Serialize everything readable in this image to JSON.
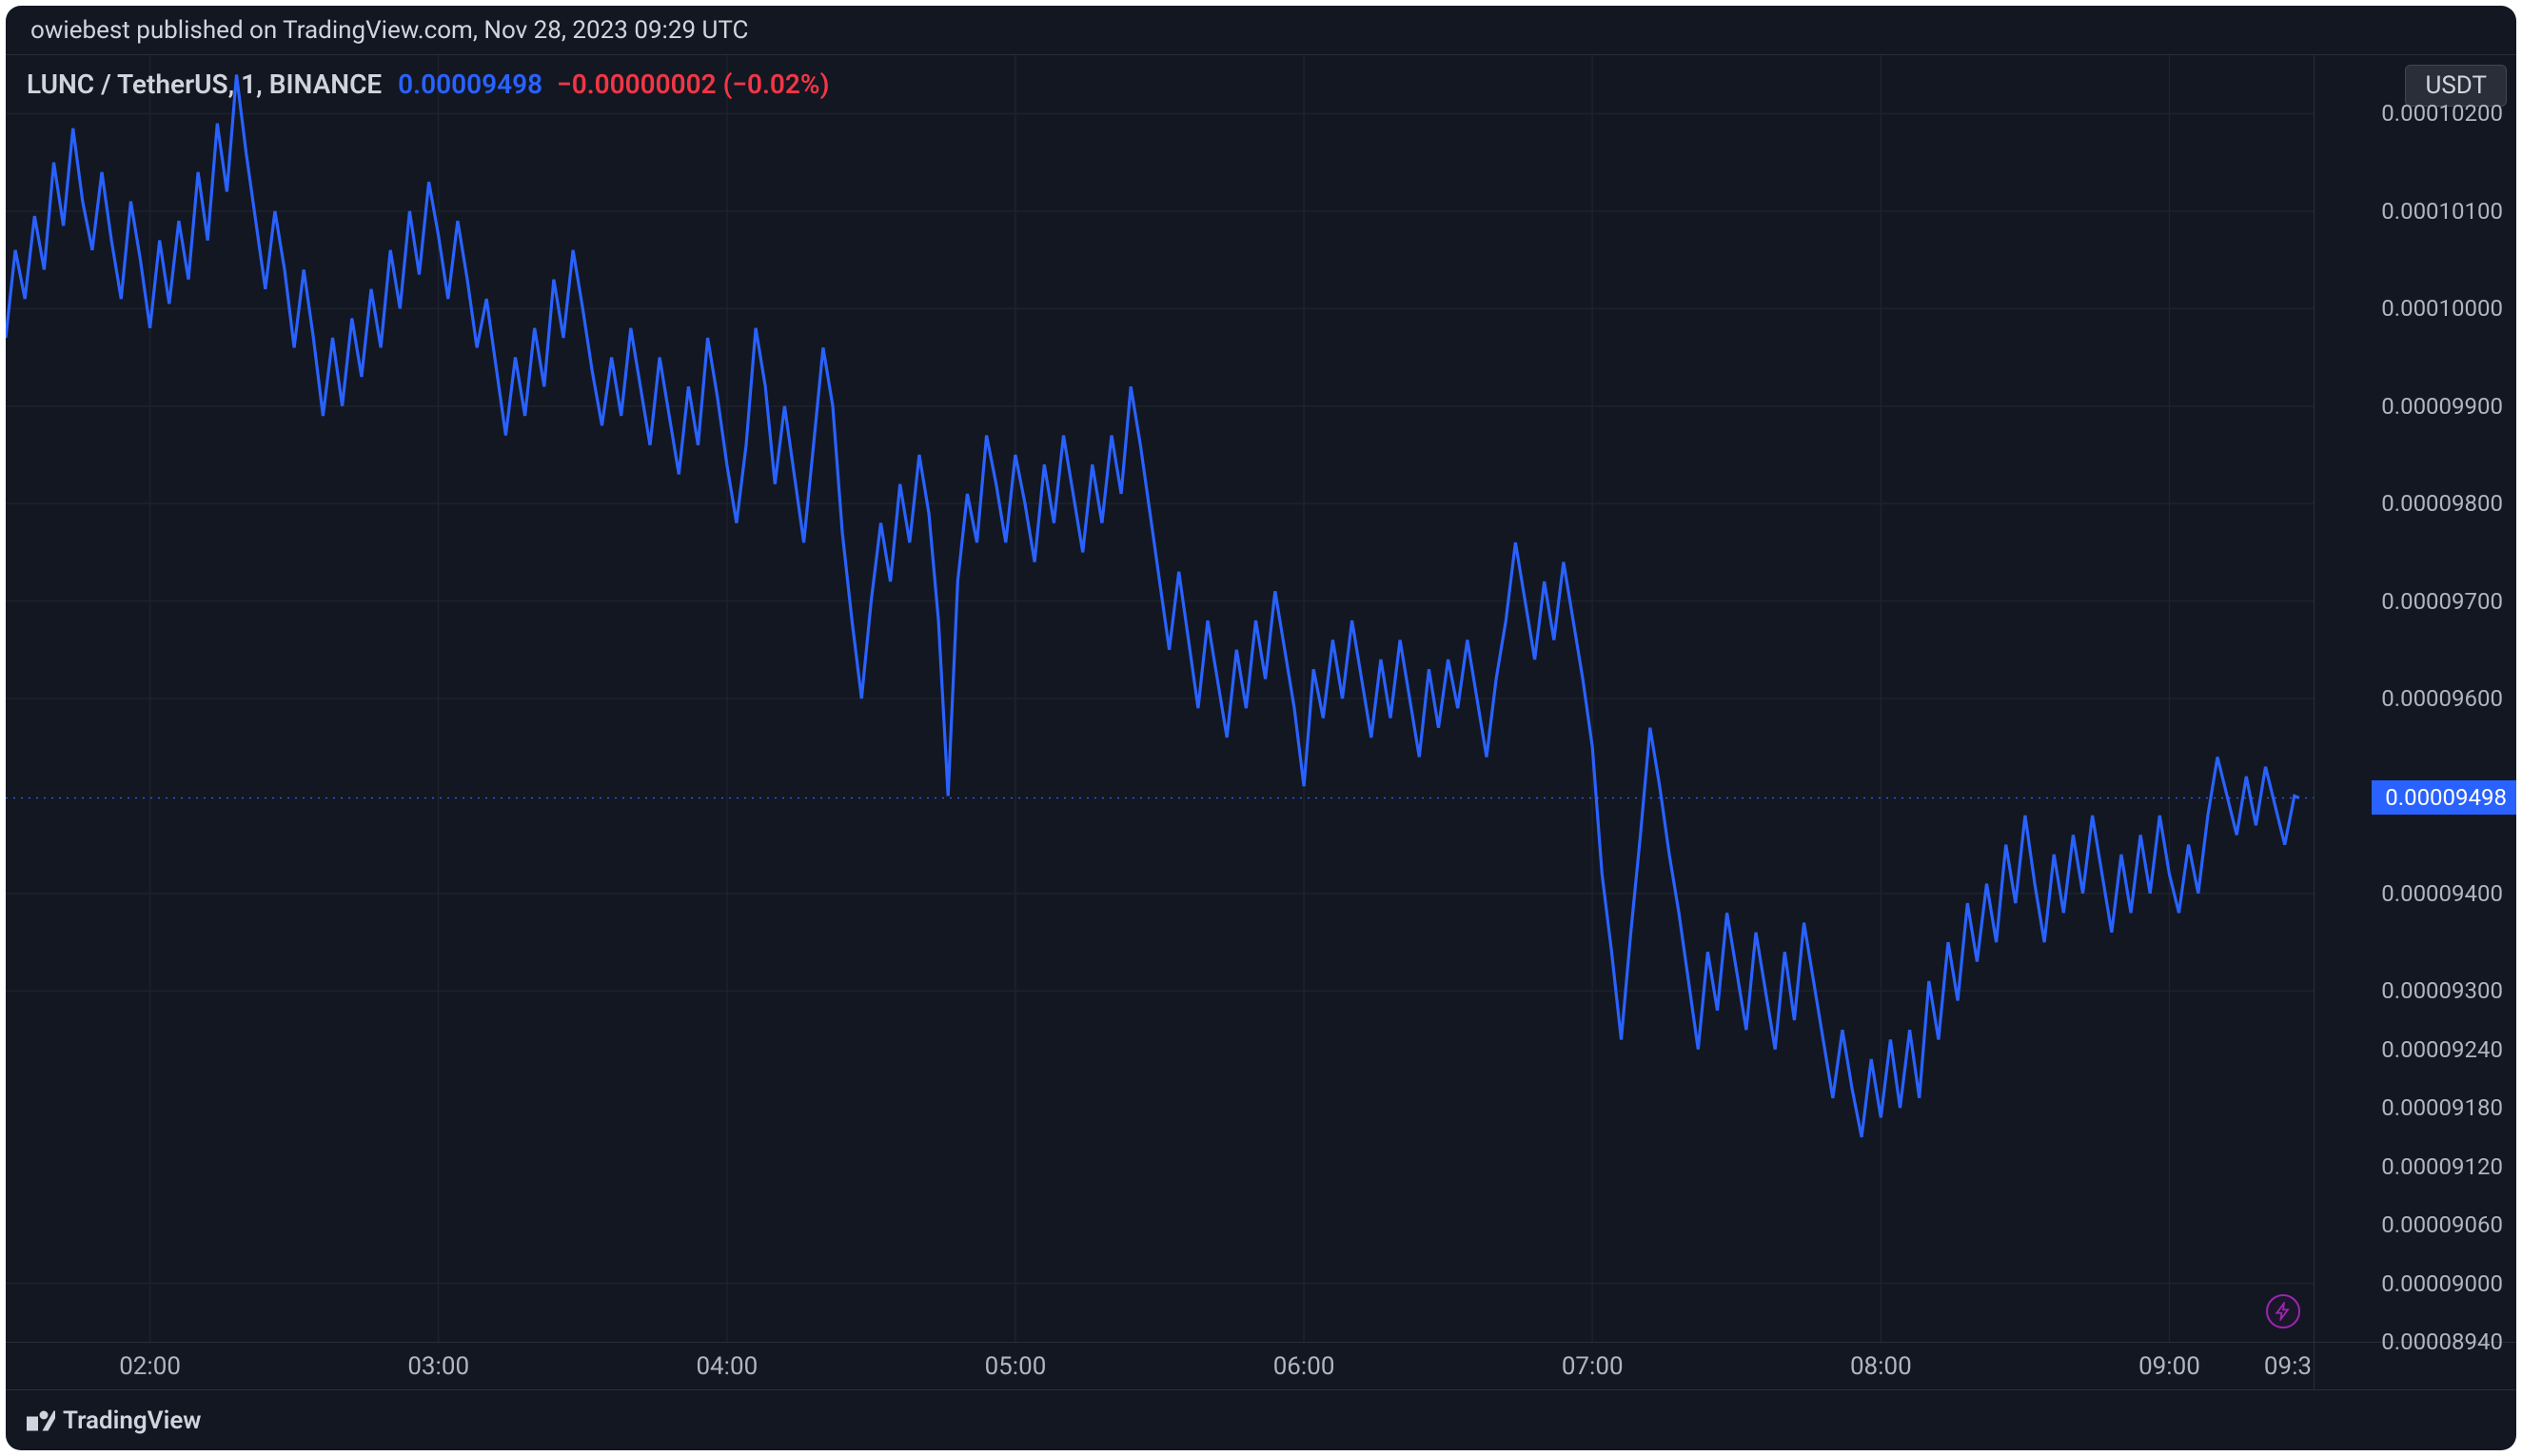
{
  "publish_line": "owiebest published on TradingView.com, Nov 28, 2023 09:29 UTC",
  "legend": {
    "symbol": "LUNC / TetherUS, 1, BINANCE",
    "value": "0.00009498",
    "change": "−0.00000002 (−0.02%)"
  },
  "unit_badge": "USDT",
  "footer_brand": "TradingView",
  "chart": {
    "type": "line",
    "background_color": "#131722",
    "grid_color": "#1e222d",
    "line_color": "#2962ff",
    "text_color": "#b2b5be",
    "change_color": "#f23645",
    "badge_bg": "#2a2e39",
    "font_family": "Trebuchet MS",
    "x_domain_minutes": [
      90,
      570
    ],
    "y_domain": [
      8.94e-05,
      0.0001026
    ],
    "x_ticks": [
      {
        "minute": 120,
        "label": "02:00"
      },
      {
        "minute": 180,
        "label": "03:00"
      },
      {
        "minute": 240,
        "label": "04:00"
      },
      {
        "minute": 300,
        "label": "05:00"
      },
      {
        "minute": 360,
        "label": "06:00"
      },
      {
        "minute": 420,
        "label": "07:00"
      },
      {
        "minute": 480,
        "label": "08:00"
      },
      {
        "minute": 540,
        "label": "09:00"
      },
      {
        "minute": 570,
        "label": "09:3"
      }
    ],
    "y_ticks": [
      {
        "v": 0.000102,
        "label": "0.00010200"
      },
      {
        "v": 0.000101,
        "label": "0.00010100"
      },
      {
        "v": 0.0001,
        "label": "0.00010000"
      },
      {
        "v": 9.9e-05,
        "label": "0.00009900"
      },
      {
        "v": 9.8e-05,
        "label": "0.00009800"
      },
      {
        "v": 9.7e-05,
        "label": "0.00009700"
      },
      {
        "v": 9.6e-05,
        "label": "0.00009600"
      },
      {
        "v": 9.498e-05,
        "label": "0.00009498",
        "is_last": true
      },
      {
        "v": 9.4e-05,
        "label": "0.00009400"
      },
      {
        "v": 9.3e-05,
        "label": "0.00009300"
      },
      {
        "v": 9.24e-05,
        "label": "0.00009240"
      },
      {
        "v": 9.18e-05,
        "label": "0.00009180"
      },
      {
        "v": 9.12e-05,
        "label": "0.00009120"
      },
      {
        "v": 9.06e-05,
        "label": "0.00009060"
      },
      {
        "v": 9e-05,
        "label": "0.00009000"
      },
      {
        "v": 8.94e-05,
        "label": "0.00008940"
      }
    ],
    "y_grid": [
      0.000102,
      0.000101,
      0.0001,
      9.9e-05,
      9.8e-05,
      9.7e-05,
      9.6e-05,
      9.4e-05,
      9.3e-05,
      9e-05
    ],
    "last_price": 9.498e-05,
    "series": [
      [
        90,
        9.97e-05
      ],
      [
        92,
        0.0001006
      ],
      [
        94,
        0.0001001
      ],
      [
        96,
        0.00010095
      ],
      [
        98,
        0.0001004
      ],
      [
        100,
        0.0001015
      ],
      [
        102,
        0.00010085
      ],
      [
        104,
        0.00010185
      ],
      [
        106,
        0.0001011
      ],
      [
        108,
        0.0001006
      ],
      [
        110,
        0.0001014
      ],
      [
        112,
        0.0001007
      ],
      [
        114,
        0.0001001
      ],
      [
        116,
        0.0001011
      ],
      [
        118,
        0.0001005
      ],
      [
        120,
        9.98e-05
      ],
      [
        122,
        0.0001007
      ],
      [
        124,
        0.00010005
      ],
      [
        126,
        0.0001009
      ],
      [
        128,
        0.0001003
      ],
      [
        130,
        0.0001014
      ],
      [
        132,
        0.0001007
      ],
      [
        134,
        0.0001019
      ],
      [
        136,
        0.0001012
      ],
      [
        138,
        0.0001024
      ],
      [
        140,
        0.0001016
      ],
      [
        142,
        0.0001009
      ],
      [
        144,
        0.0001002
      ],
      [
        146,
        0.000101
      ],
      [
        148,
        0.0001004
      ],
      [
        150,
        9.96e-05
      ],
      [
        152,
        0.0001004
      ],
      [
        154,
        9.97e-05
      ],
      [
        156,
        9.89e-05
      ],
      [
        158,
        9.97e-05
      ],
      [
        160,
        9.9e-05
      ],
      [
        162,
        9.99e-05
      ],
      [
        164,
        9.93e-05
      ],
      [
        166,
        0.0001002
      ],
      [
        168,
        9.96e-05
      ],
      [
        170,
        0.0001006
      ],
      [
        172,
        0.0001
      ],
      [
        174,
        0.000101
      ],
      [
        176,
        0.00010035
      ],
      [
        178,
        0.0001013
      ],
      [
        180,
        0.00010075
      ],
      [
        182,
        0.0001001
      ],
      [
        184,
        0.0001009
      ],
      [
        186,
        0.0001003
      ],
      [
        188,
        9.96e-05
      ],
      [
        190,
        0.0001001
      ],
      [
        192,
        9.94e-05
      ],
      [
        194,
        9.87e-05
      ],
      [
        196,
        9.95e-05
      ],
      [
        198,
        9.89e-05
      ],
      [
        200,
        9.98e-05
      ],
      [
        202,
        9.92e-05
      ],
      [
        204,
        0.0001003
      ],
      [
        206,
        9.97e-05
      ],
      [
        208,
        0.0001006
      ],
      [
        210,
        0.0001
      ],
      [
        212,
        9.935e-05
      ],
      [
        214,
        9.88e-05
      ],
      [
        216,
        9.95e-05
      ],
      [
        218,
        9.89e-05
      ],
      [
        220,
        9.98e-05
      ],
      [
        222,
        9.92e-05
      ],
      [
        224,
        9.86e-05
      ],
      [
        226,
        9.95e-05
      ],
      [
        228,
        9.89e-05
      ],
      [
        230,
        9.83e-05
      ],
      [
        232,
        9.92e-05
      ],
      [
        234,
        9.86e-05
      ],
      [
        236,
        9.97e-05
      ],
      [
        238,
        9.91e-05
      ],
      [
        240,
        9.84e-05
      ],
      [
        242,
        9.78e-05
      ],
      [
        244,
        9.86e-05
      ],
      [
        246,
        9.98e-05
      ],
      [
        248,
        9.92e-05
      ],
      [
        250,
        9.82e-05
      ],
      [
        252,
        9.9e-05
      ],
      [
        254,
        9.83e-05
      ],
      [
        256,
        9.76e-05
      ],
      [
        258,
        9.86e-05
      ],
      [
        260,
        9.96e-05
      ],
      [
        262,
        9.9e-05
      ],
      [
        264,
        9.77e-05
      ],
      [
        266,
        9.68e-05
      ],
      [
        268,
        9.6e-05
      ],
      [
        270,
        9.7e-05
      ],
      [
        272,
        9.78e-05
      ],
      [
        274,
        9.72e-05
      ],
      [
        276,
        9.82e-05
      ],
      [
        278,
        9.76e-05
      ],
      [
        280,
        9.85e-05
      ],
      [
        282,
        9.79e-05
      ],
      [
        284,
        9.68e-05
      ],
      [
        286,
        9.5e-05
      ],
      [
        288,
        9.72e-05
      ],
      [
        290,
        9.81e-05
      ],
      [
        292,
        9.76e-05
      ],
      [
        294,
        9.87e-05
      ],
      [
        296,
        9.82e-05
      ],
      [
        298,
        9.76e-05
      ],
      [
        300,
        9.85e-05
      ],
      [
        302,
        9.8e-05
      ],
      [
        304,
        9.74e-05
      ],
      [
        306,
        9.84e-05
      ],
      [
        308,
        9.78e-05
      ],
      [
        310,
        9.87e-05
      ],
      [
        312,
        9.81e-05
      ],
      [
        314,
        9.75e-05
      ],
      [
        316,
        9.84e-05
      ],
      [
        318,
        9.78e-05
      ],
      [
        320,
        9.87e-05
      ],
      [
        322,
        9.81e-05
      ],
      [
        324,
        9.92e-05
      ],
      [
        326,
        9.86e-05
      ],
      [
        328,
        9.79e-05
      ],
      [
        330,
        9.72e-05
      ],
      [
        332,
        9.65e-05
      ],
      [
        334,
        9.73e-05
      ],
      [
        336,
        9.66e-05
      ],
      [
        338,
        9.59e-05
      ],
      [
        340,
        9.68e-05
      ],
      [
        342,
        9.62e-05
      ],
      [
        344,
        9.56e-05
      ],
      [
        346,
        9.65e-05
      ],
      [
        348,
        9.59e-05
      ],
      [
        350,
        9.68e-05
      ],
      [
        352,
        9.62e-05
      ],
      [
        354,
        9.71e-05
      ],
      [
        356,
        9.65e-05
      ],
      [
        358,
        9.59e-05
      ],
      [
        360,
        9.51e-05
      ],
      [
        362,
        9.63e-05
      ],
      [
        364,
        9.58e-05
      ],
      [
        366,
        9.66e-05
      ],
      [
        368,
        9.6e-05
      ],
      [
        370,
        9.68e-05
      ],
      [
        372,
        9.62e-05
      ],
      [
        374,
        9.56e-05
      ],
      [
        376,
        9.64e-05
      ],
      [
        378,
        9.58e-05
      ],
      [
        380,
        9.66e-05
      ],
      [
        382,
        9.6e-05
      ],
      [
        384,
        9.54e-05
      ],
      [
        386,
        9.63e-05
      ],
      [
        388,
        9.57e-05
      ],
      [
        390,
        9.64e-05
      ],
      [
        392,
        9.59e-05
      ],
      [
        394,
        9.66e-05
      ],
      [
        396,
        9.6e-05
      ],
      [
        398,
        9.54e-05
      ],
      [
        400,
        9.62e-05
      ],
      [
        402,
        9.68e-05
      ],
      [
        404,
        9.76e-05
      ],
      [
        406,
        9.7e-05
      ],
      [
        408,
        9.64e-05
      ],
      [
        410,
        9.72e-05
      ],
      [
        412,
        9.66e-05
      ],
      [
        414,
        9.74e-05
      ],
      [
        416,
        9.68e-05
      ],
      [
        418,
        9.62e-05
      ],
      [
        420,
        9.55e-05
      ],
      [
        422,
        9.42e-05
      ],
      [
        424,
        9.34e-05
      ],
      [
        426,
        9.25e-05
      ],
      [
        428,
        9.36e-05
      ],
      [
        430,
        9.46e-05
      ],
      [
        432,
        9.57e-05
      ],
      [
        434,
        9.51e-05
      ],
      [
        436,
        9.44e-05
      ],
      [
        438,
        9.38e-05
      ],
      [
        440,
        9.31e-05
      ],
      [
        442,
        9.24e-05
      ],
      [
        444,
        9.34e-05
      ],
      [
        446,
        9.28e-05
      ],
      [
        448,
        9.38e-05
      ],
      [
        450,
        9.32e-05
      ],
      [
        452,
        9.26e-05
      ],
      [
        454,
        9.36e-05
      ],
      [
        456,
        9.3e-05
      ],
      [
        458,
        9.24e-05
      ],
      [
        460,
        9.34e-05
      ],
      [
        462,
        9.27e-05
      ],
      [
        464,
        9.37e-05
      ],
      [
        466,
        9.31e-05
      ],
      [
        468,
        9.25e-05
      ],
      [
        470,
        9.19e-05
      ],
      [
        472,
        9.26e-05
      ],
      [
        474,
        9.2e-05
      ],
      [
        476,
        9.15e-05
      ],
      [
        478,
        9.23e-05
      ],
      [
        480,
        9.17e-05
      ],
      [
        482,
        9.25e-05
      ],
      [
        484,
        9.18e-05
      ],
      [
        486,
        9.26e-05
      ],
      [
        488,
        9.19e-05
      ],
      [
        490,
        9.31e-05
      ],
      [
        492,
        9.25e-05
      ],
      [
        494,
        9.35e-05
      ],
      [
        496,
        9.29e-05
      ],
      [
        498,
        9.39e-05
      ],
      [
        500,
        9.33e-05
      ],
      [
        502,
        9.41e-05
      ],
      [
        504,
        9.35e-05
      ],
      [
        506,
        9.45e-05
      ],
      [
        508,
        9.39e-05
      ],
      [
        510,
        9.48e-05
      ],
      [
        512,
        9.41e-05
      ],
      [
        514,
        9.35e-05
      ],
      [
        516,
        9.44e-05
      ],
      [
        518,
        9.38e-05
      ],
      [
        520,
        9.46e-05
      ],
      [
        522,
        9.4e-05
      ],
      [
        524,
        9.48e-05
      ],
      [
        526,
        9.42e-05
      ],
      [
        528,
        9.36e-05
      ],
      [
        530,
        9.44e-05
      ],
      [
        532,
        9.38e-05
      ],
      [
        534,
        9.46e-05
      ],
      [
        536,
        9.4e-05
      ],
      [
        538,
        9.48e-05
      ],
      [
        540,
        9.42e-05
      ],
      [
        542,
        9.38e-05
      ],
      [
        544,
        9.45e-05
      ],
      [
        546,
        9.4e-05
      ],
      [
        548,
        9.48e-05
      ],
      [
        550,
        9.54e-05
      ],
      [
        552,
        9.5e-05
      ],
      [
        554,
        9.46e-05
      ],
      [
        556,
        9.52e-05
      ],
      [
        558,
        9.47e-05
      ],
      [
        560,
        9.53e-05
      ],
      [
        562,
        9.49e-05
      ],
      [
        564,
        9.45e-05
      ],
      [
        566,
        9.5e-05
      ],
      [
        567,
        9.498e-05
      ]
    ]
  }
}
